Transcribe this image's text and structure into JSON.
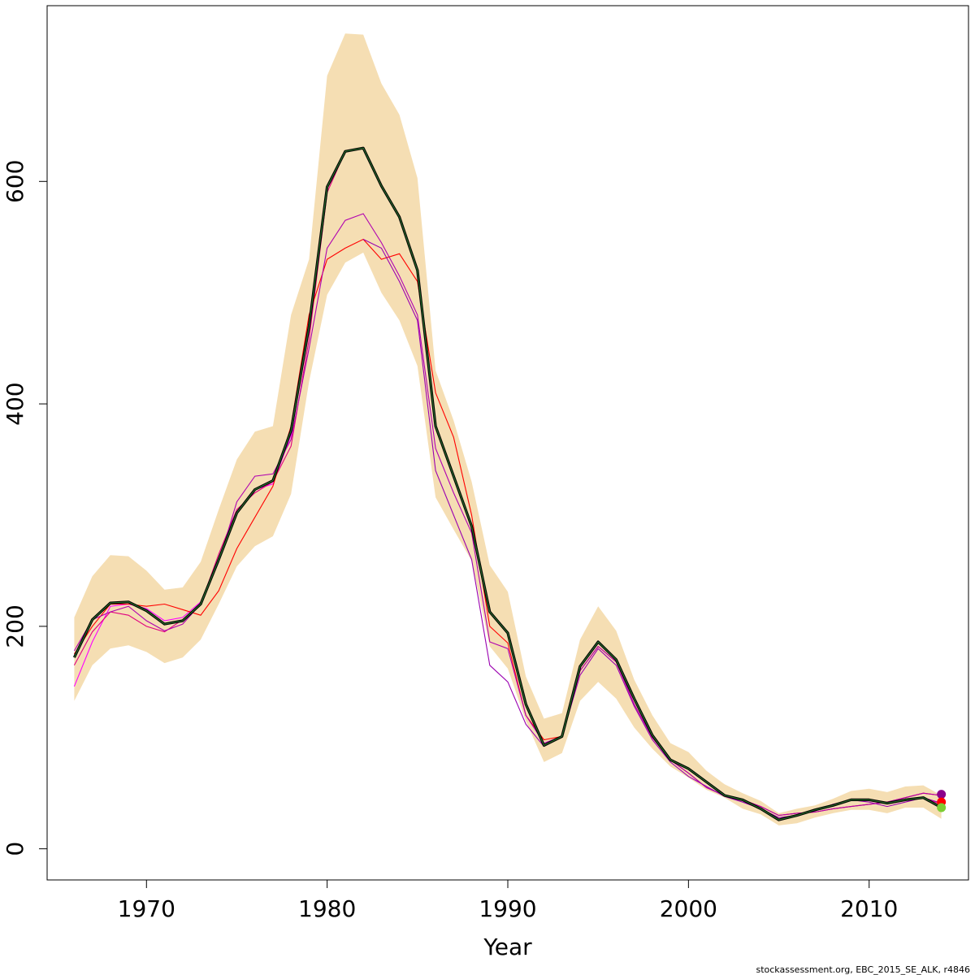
{
  "chart_data": {
    "type": "line",
    "title": "",
    "xlabel": "Year",
    "ylabel": "",
    "xlim": [
      1964.5,
      2015.5
    ],
    "ylim": [
      -28,
      758
    ],
    "x_ticks": [
      1970,
      1980,
      1990,
      2000,
      2010
    ],
    "y_ticks": [
      0,
      200,
      400,
      600
    ],
    "grid": false,
    "credit": "stockassessment.org, EBC_2015_SE_ALK, r4846",
    "colors": {
      "band": "#F5DEB3",
      "main": "#000000",
      "main_inner": "#2E7D32",
      "retro": [
        "#FF00FF",
        "#E0007F",
        "#FF0000",
        "#B000B0",
        "#9A00B0",
        "#FF1060"
      ]
    },
    "confidence_band": {
      "x": [
        1966,
        1967,
        1968,
        1969,
        1970,
        1971,
        1972,
        1973,
        1974,
        1975,
        1976,
        1977,
        1978,
        1979,
        1980,
        1981,
        1982,
        1983,
        1984,
        1985,
        1986,
        1987,
        1988,
        1989,
        1990,
        1991,
        1992,
        1993,
        1994,
        1995,
        1996,
        1997,
        1998,
        1999,
        2000,
        2001,
        2002,
        2003,
        2004,
        2005,
        2006,
        2007,
        2008,
        2009,
        2010,
        2011,
        2012,
        2013,
        2014
      ],
      "upper": [
        208,
        245,
        264,
        263,
        250,
        233,
        235,
        258,
        305,
        350,
        375,
        380,
        480,
        530,
        695,
        733,
        732,
        688,
        660,
        603,
        430,
        385,
        330,
        255,
        231,
        155,
        117,
        122,
        188,
        218,
        196,
        152,
        120,
        95,
        87,
        70,
        58,
        50,
        43,
        32,
        36,
        39,
        45,
        52,
        54,
        51,
        56,
        57,
        48
      ],
      "lower": [
        133,
        165,
        180,
        183,
        177,
        167,
        172,
        188,
        220,
        254,
        272,
        281,
        319,
        420,
        498,
        527,
        536,
        500,
        475,
        434,
        316,
        287,
        259,
        182,
        162,
        115,
        78,
        86,
        133,
        150,
        135,
        109,
        90,
        74,
        64,
        53,
        46,
        36,
        31,
        21,
        23,
        28,
        32,
        35,
        35,
        32,
        37,
        37,
        27
      ]
    },
    "series": [
      {
        "values": [
          172,
          206,
          221,
          222,
          214,
          202,
          205,
          220,
          260,
          302,
          323,
          331,
          376,
          470,
          595,
          627,
          630,
          596,
          568,
          520,
          380,
          335,
          290,
          213,
          194,
          130,
          93,
          101,
          164,
          186,
          170,
          135,
          102,
          80,
          72,
          60,
          48,
          44,
          36,
          26,
          30,
          35,
          39,
          44,
          44,
          41,
          44,
          46,
          37
        ]
      },
      {
        "values": [
          146,
          186,
          218,
          220,
          216,
          205,
          208,
          222,
          260,
          303,
          323,
          328,
          372,
          465,
          595,
          627,
          630,
          596,
          568,
          520,
          380,
          335,
          290,
          213,
          194,
          130,
          93,
          101,
          164,
          186,
          170,
          135,
          102,
          80,
          72,
          60,
          48,
          44,
          36,
          26,
          30,
          35,
          39,
          44,
          44,
          41,
          44,
          46,
          36
        ]
      },
      {
        "values": [
          165,
          195,
          213,
          210,
          200,
          195,
          206,
          220,
          265,
          305,
          320,
          330,
          362,
          458,
          590,
          627,
          630,
          596,
          568,
          520,
          380,
          335,
          290,
          213,
          194,
          130,
          93,
          101,
          164,
          186,
          170,
          135,
          102,
          80,
          72,
          60,
          48,
          44,
          36,
          26,
          30,
          35,
          39,
          44,
          44,
          41,
          44,
          46,
          40
        ]
      },
      {
        "values": [
          175,
          200,
          220,
          220,
          218,
          220,
          215,
          210,
          232,
          270,
          298,
          326,
          380,
          480,
          530,
          540,
          548,
          530,
          535,
          510,
          410,
          370,
          300,
          200,
          185,
          120,
          98,
          101,
          160,
          182,
          168,
          130,
          100,
          80,
          68,
          55,
          48,
          44,
          38,
          30,
          32,
          33,
          36,
          38,
          40,
          42,
          46,
          50,
          48
        ]
      },
      {
        "values": [
          178,
          206,
          213,
          218,
          205,
          196,
          202,
          220,
          258,
          312,
          335,
          337,
          368,
          450,
          540,
          565,
          571,
          545,
          515,
          480,
          360,
          320,
          284,
          186,
          180,
          120,
          95,
          101,
          160,
          182,
          168,
          130,
          100,
          80,
          68,
          55,
          48,
          44,
          38,
          30,
          32,
          33,
          36,
          38,
          40,
          42,
          46,
          50,
          48
        ]
      },
      {
        "values": [
          null,
          null,
          null,
          null,
          null,
          null,
          null,
          null,
          null,
          null,
          null,
          null,
          null,
          null,
          null,
          null,
          548,
          540,
          510,
          475,
          340,
          300,
          260,
          165,
          150,
          112,
          92,
          101,
          156,
          180,
          165,
          128,
          98,
          78,
          65,
          56,
          47,
          42,
          36,
          28,
          30,
          34,
          40,
          44,
          42,
          38,
          42,
          46,
          41
        ]
      }
    ],
    "end_points": [
      {
        "x": 2014,
        "y": 49,
        "color": "#8B008B"
      },
      {
        "x": 2014,
        "y": 42,
        "color": "#FF0000"
      },
      {
        "x": 2014,
        "y": 37,
        "color": "#7CCD32"
      }
    ]
  }
}
